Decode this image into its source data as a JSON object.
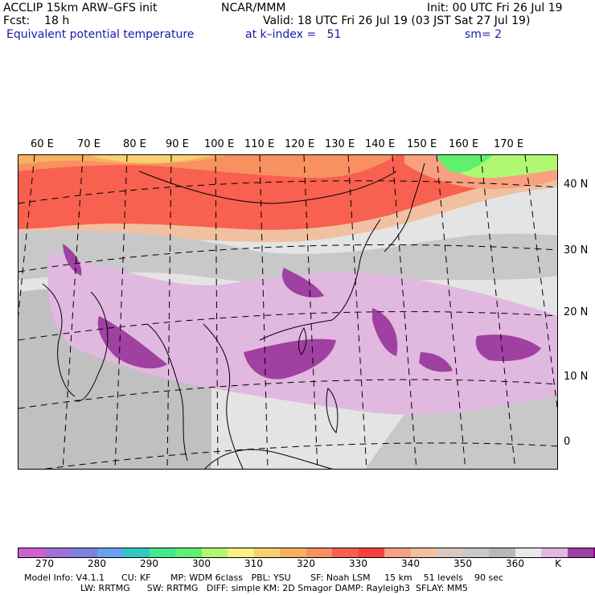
{
  "header": {
    "model_line": "ACCLIP 15km ARW–GFS init",
    "org": "NCAR/MMM",
    "init": "Init: 00 UTC Fri 26 Jul 19",
    "fcst": "Fcst:    18 h",
    "valid": "Valid: 18 UTC Fri 26 Jul 19 (03 JST Sat 27 Jul 19)",
    "field": "Equivalent potential temperature",
    "level": "at k–index =   51",
    "smoothing": "sm= 2"
  },
  "map": {
    "lon_labels": [
      "60 E",
      "70 E",
      "80 E",
      "90 E",
      "100 E",
      "110 E",
      "120 E",
      "130 E",
      "140 E",
      "150 E",
      "160 E",
      "170 E"
    ],
    "lat_labels": [
      "40 N",
      "30 N",
      "20 N",
      "10 N",
      "0"
    ]
  },
  "colorbar": {
    "colors": [
      "#d060d0",
      "#a070d8",
      "#8080e0",
      "#6aa0f0",
      "#30c8c0",
      "#40e890",
      "#60f070",
      "#b0f870",
      "#f8f080",
      "#f8d070",
      "#f8b060",
      "#f89060",
      "#f86050",
      "#f84040",
      "#f8a080",
      "#f0c0a0",
      "#d8c8c0",
      "#c8c8c8",
      "#b8b8b8",
      "#e8e8e8",
      "#e0b8e0",
      "#a040a0",
      "#800080"
    ],
    "labels": [
      "270",
      "280",
      "290",
      "300",
      "310",
      "320",
      "330",
      "340",
      "350",
      "360"
    ],
    "unit": "K"
  },
  "footer": {
    "line1": "Model Info: V4.1.1      CU: KF       MP: WDM 6class   PBL: YSU       SF: Noah LSM     15 km    51 levels    90 sec",
    "line2": "LW: RRTMG      SW: RRTMG   DIFF: simple KM: 2D Smagor DAMP: Rayleigh3  SFLAY: MM5"
  }
}
